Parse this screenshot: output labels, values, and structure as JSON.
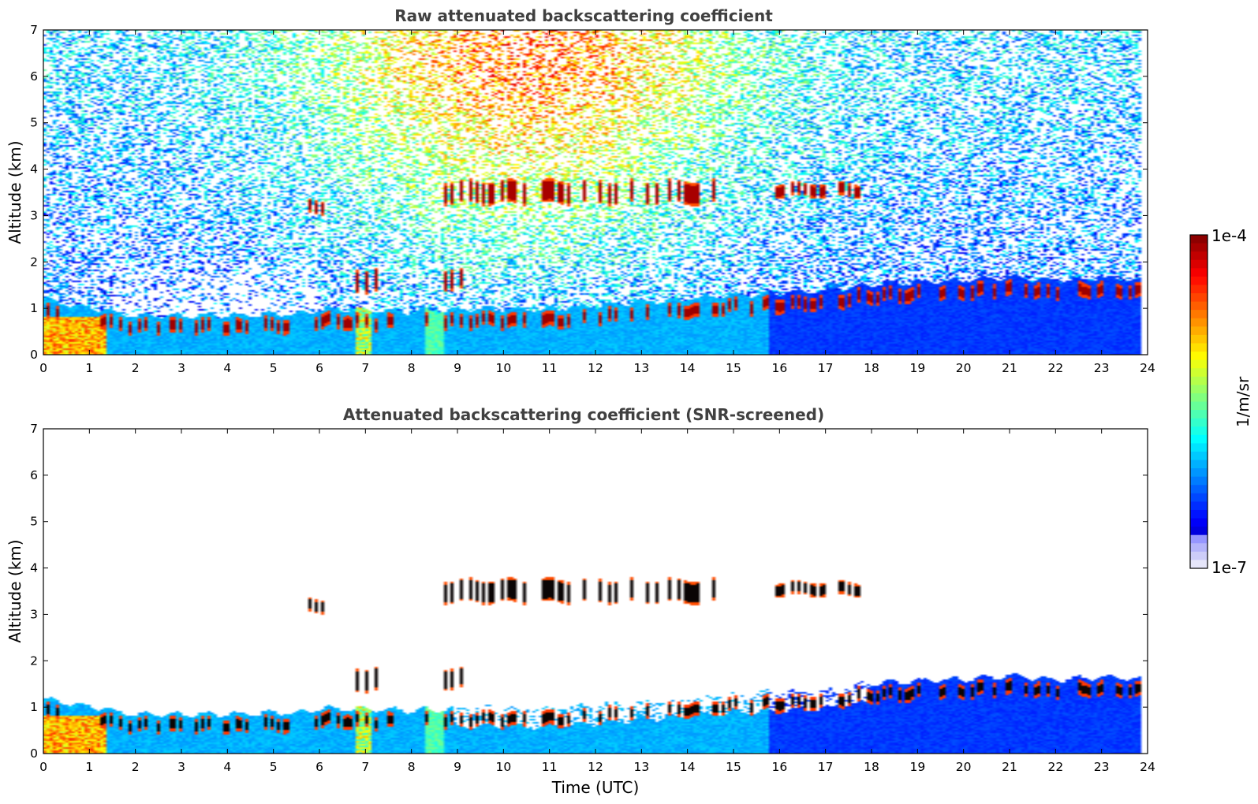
{
  "chart_data": [
    {
      "type": "heatmap",
      "title": "Raw attenuated backscattering coefficient",
      "xlabel": "",
      "ylabel": "Altitude (km)",
      "xlim": [
        0,
        24
      ],
      "ylim": [
        0,
        7
      ],
      "xticks": [
        "0",
        "1",
        "2",
        "3",
        "4",
        "5",
        "6",
        "7",
        "8",
        "9",
        "10",
        "11",
        "12",
        "13",
        "14",
        "15",
        "16",
        "17",
        "18",
        "19",
        "20",
        "21",
        "22",
        "23",
        "24"
      ],
      "yticks": [
        "0",
        "1",
        "2",
        "3",
        "4",
        "5",
        "6",
        "7"
      ],
      "data_end_hour": 23.85,
      "screened": false,
      "features": {
        "boundary_layer_top_km": [
          {
            "t": 0,
            "h": 0.95
          },
          {
            "t": 1.5,
            "h": 0.7
          },
          {
            "t": 2,
            "h": 0.62
          },
          {
            "t": 4,
            "h": 0.62
          },
          {
            "t": 5.5,
            "h": 0.65
          },
          {
            "t": 6,
            "h": 0.75
          },
          {
            "t": 8,
            "h": 0.7
          },
          {
            "t": 9,
            "h": 0.75
          },
          {
            "t": 11,
            "h": 0.75
          },
          {
            "t": 13,
            "h": 0.9
          },
          {
            "t": 15,
            "h": 1.05
          },
          {
            "t": 16,
            "h": 1.1
          },
          {
            "t": 17,
            "h": 1.15
          },
          {
            "t": 18,
            "h": 1.28
          },
          {
            "t": 20,
            "h": 1.38
          },
          {
            "t": 21,
            "h": 1.45
          },
          {
            "t": 22,
            "h": 1.35
          },
          {
            "t": 23,
            "h": 1.42
          },
          {
            "t": 23.85,
            "h": 1.38
          }
        ],
        "cloud_layers": [
          {
            "start": 5.6,
            "end": 6.1,
            "base_km": 3.1,
            "top_km": 3.3
          },
          {
            "start": 8.7,
            "end": 14.6,
            "base_km": 3.3,
            "top_km": 3.7
          },
          {
            "start": 15.8,
            "end": 17.9,
            "base_km": 3.45,
            "top_km": 3.65
          },
          {
            "start": 6.8,
            "end": 7.3,
            "base_km": 1.4,
            "top_km": 1.8
          },
          {
            "start": 8.6,
            "end": 9.1,
            "base_km": 1.45,
            "top_km": 1.8
          }
        ]
      }
    },
    {
      "type": "heatmap",
      "title": "Attenuated backscattering coefficient (SNR-screened)",
      "xlabel": "Time (UTC)",
      "ylabel": "Altitude (km)",
      "xlim": [
        0,
        24
      ],
      "ylim": [
        0,
        7
      ],
      "xticks": [
        "0",
        "1",
        "2",
        "3",
        "4",
        "5",
        "6",
        "7",
        "8",
        "9",
        "10",
        "11",
        "12",
        "13",
        "14",
        "15",
        "16",
        "17",
        "18",
        "19",
        "20",
        "21",
        "22",
        "23",
        "24"
      ],
      "yticks": [
        "0",
        "1",
        "2",
        "3",
        "4",
        "5",
        "6",
        "7"
      ],
      "data_end_hour": 23.85,
      "screened": true
    }
  ],
  "colorbar": {
    "label": "1/m/sr",
    "max_label": "1e-4",
    "min_label": "1e-7",
    "scale": "log",
    "colormap": "jet",
    "range": [
      1e-07,
      0.0001
    ]
  }
}
